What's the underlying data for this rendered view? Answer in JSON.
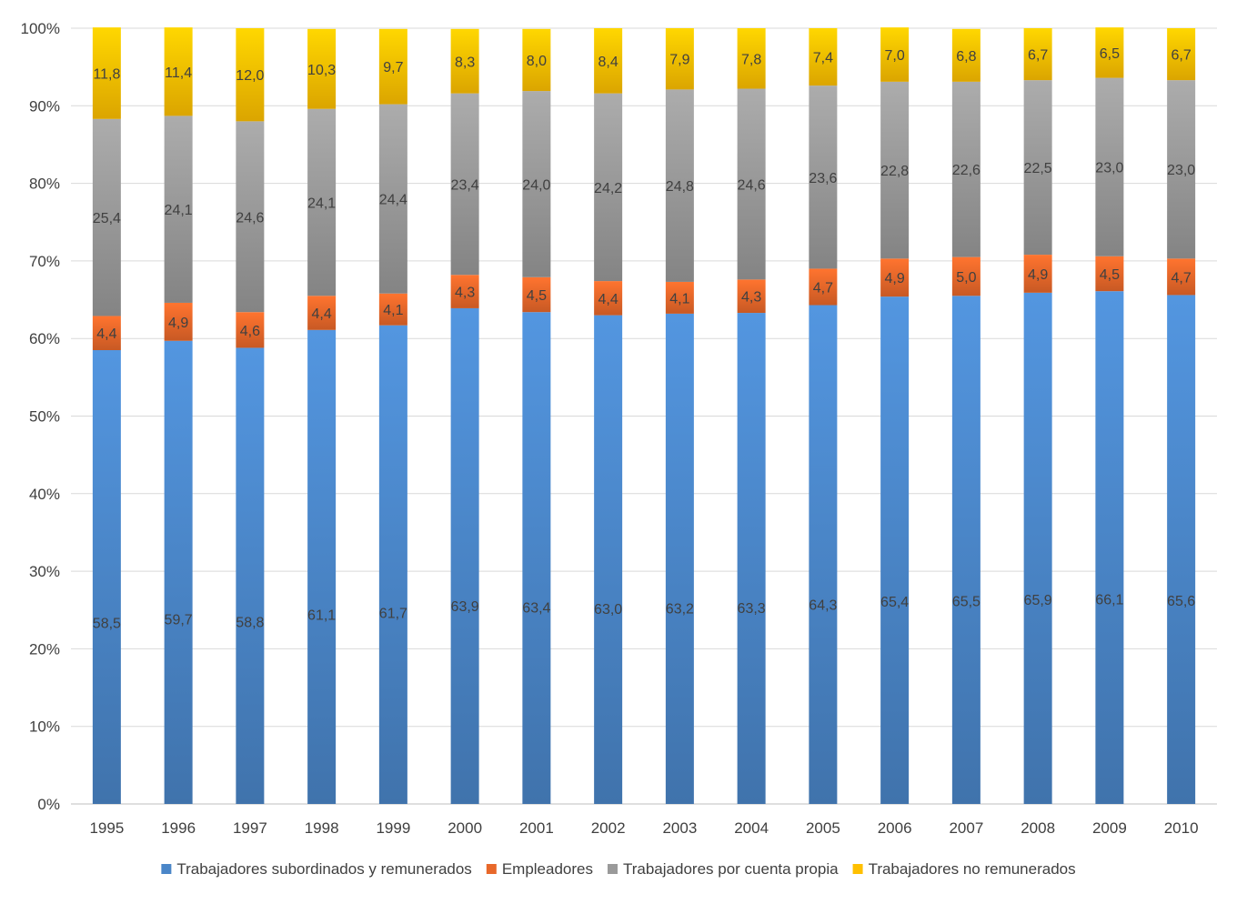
{
  "chart_data": {
    "type": "bar",
    "stacked": true,
    "percent_stacked": true,
    "categories": [
      "1995",
      "1996",
      "1997",
      "1998",
      "1999",
      "2000",
      "2001",
      "2002",
      "2003",
      "2004",
      "2005",
      "2006",
      "2007",
      "2008",
      "2009",
      "2010"
    ],
    "series": [
      {
        "name": "Trabajadores subordinados y remunerados",
        "color": "#4a86c8",
        "values": [
          58.5,
          59.7,
          58.8,
          61.1,
          61.7,
          63.9,
          63.4,
          63.0,
          63.2,
          63.3,
          64.3,
          65.4,
          65.5,
          65.9,
          66.1,
          65.6
        ],
        "labels": [
          "58,5",
          "59,7",
          "58,8",
          "61,1",
          "61,7",
          "63,9",
          "63,4",
          "63,0",
          "63,2",
          "63,3",
          "64,3",
          "65,4",
          "65,5",
          "65,9",
          "66,1",
          "65,6"
        ]
      },
      {
        "name": "Empleadores",
        "color": "#e8682a",
        "values": [
          4.4,
          4.9,
          4.6,
          4.4,
          4.1,
          4.3,
          4.5,
          4.4,
          4.1,
          4.3,
          4.7,
          4.9,
          5.0,
          4.9,
          4.5,
          4.7
        ],
        "labels": [
          "4,4",
          "4,9",
          "4,6",
          "4,4",
          "4,1",
          "4,3",
          "4,5",
          "4,4",
          "4,1",
          "4,3",
          "4,7",
          "4,9",
          "5,0",
          "4,9",
          "4,5",
          "4,7"
        ]
      },
      {
        "name": "Trabajadores por cuenta propia",
        "color": "#9a9a9a",
        "values": [
          25.4,
          24.1,
          24.6,
          24.1,
          24.4,
          23.4,
          24.0,
          24.2,
          24.8,
          24.6,
          23.6,
          22.8,
          22.6,
          22.5,
          23.0,
          23.0
        ],
        "labels": [
          "25,4",
          "24,1",
          "24,6",
          "24,1",
          "24,4",
          "23,4",
          "24,0",
          "24,2",
          "24,8",
          "24,6",
          "23,6",
          "22,8",
          "22,6",
          "22,5",
          "23,0",
          "23,0"
        ]
      },
      {
        "name": "Trabajadores no remunerados",
        "color": "#ffc000",
        "values": [
          11.8,
          11.4,
          12.0,
          10.3,
          9.7,
          8.3,
          8.0,
          8.4,
          7.9,
          7.8,
          7.4,
          7.0,
          6.8,
          6.7,
          6.5,
          6.7
        ],
        "labels": [
          "11,8",
          "11,4",
          "12,0",
          "10,3",
          "9,7",
          "8,3",
          "8,0",
          "8,4",
          "7,9",
          "7,8",
          "7,4",
          "7,0",
          "6,8",
          "6,7",
          "6,5",
          "6,7"
        ]
      }
    ],
    "y_ticks": [
      "0%",
      "10%",
      "20%",
      "30%",
      "40%",
      "50%",
      "60%",
      "70%",
      "80%",
      "90%",
      "100%"
    ],
    "ylim": [
      0,
      100
    ],
    "grid": true,
    "legend_position": "bottom"
  }
}
